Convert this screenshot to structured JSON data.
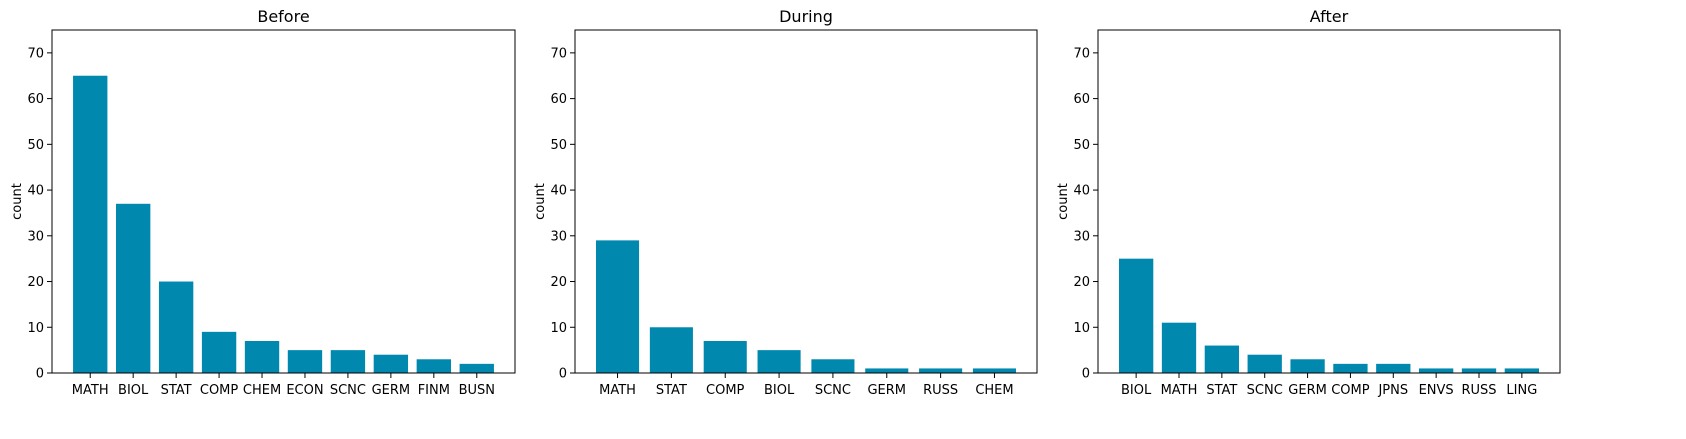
{
  "chart_data": [
    {
      "type": "bar",
      "title": "Before",
      "xlabel": "",
      "ylabel": "count",
      "ylim": [
        0,
        75
      ],
      "yticks": [
        0,
        10,
        20,
        30,
        40,
        50,
        60,
        70
      ],
      "categories": [
        "MATH",
        "BIOL",
        "STAT",
        "COMP",
        "CHEM",
        "ECON",
        "SCNC",
        "GERM",
        "FINM",
        "BUSN"
      ],
      "values": [
        65,
        37,
        20,
        9,
        7,
        5,
        5,
        4,
        3,
        2
      ],
      "grid": false,
      "bar_color": "#0088AF"
    },
    {
      "type": "bar",
      "title": "During",
      "xlabel": "",
      "ylabel": "count",
      "ylim": [
        0,
        75
      ],
      "yticks": [
        0,
        10,
        20,
        30,
        40,
        50,
        60,
        70
      ],
      "categories": [
        "MATH",
        "STAT",
        "COMP",
        "BIOL",
        "SCNC",
        "GERM",
        "RUSS",
        "CHEM"
      ],
      "values": [
        29,
        10,
        7,
        5,
        3,
        1,
        1,
        1
      ],
      "grid": false,
      "bar_color": "#0088AF"
    },
    {
      "type": "bar",
      "title": "After",
      "xlabel": "",
      "ylabel": "count",
      "ylim": [
        0,
        75
      ],
      "yticks": [
        0,
        10,
        20,
        30,
        40,
        50,
        60,
        70
      ],
      "categories": [
        "BIOL",
        "MATH",
        "STAT",
        "SCNC",
        "GERM",
        "COMP",
        "JPNS",
        "ENVS",
        "RUSS",
        "LING"
      ],
      "values": [
        25,
        11,
        6,
        4,
        3,
        2,
        2,
        1,
        1,
        1
      ],
      "grid": false,
      "bar_color": "#0088AF"
    }
  ]
}
